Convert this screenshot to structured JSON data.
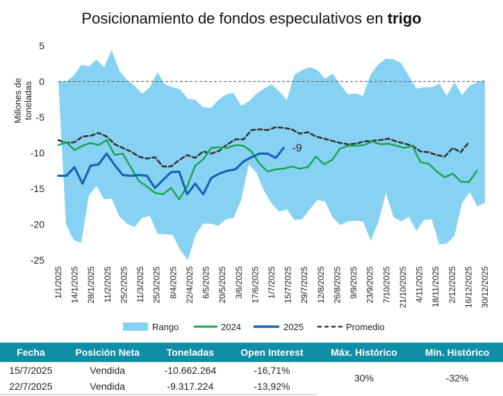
{
  "title_main": "Posicionamiento de fondos especulativos en ",
  "title_bold": "trigo",
  "chart_data": {
    "type": "area",
    "ylabel": "Millones de toneladas",
    "ylim": [
      -25,
      5
    ],
    "yticks": [
      5,
      0,
      -5,
      -10,
      -15,
      -20,
      -25
    ],
    "x_tick_labels": [
      "1/1/2025",
      "14/1/2025",
      "28/1/2025",
      "11/2/2025",
      "25/2/2025",
      "11/3/2025",
      "25/3/2025",
      "8/4/2025",
      "22/4/2025",
      "6/5/2025",
      "20/5/2025",
      "3/6/2025",
      "17/6/2025",
      "1/7/2025",
      "15/7/2025",
      "29/7/2025",
      "12/8/2025",
      "26/8/2025",
      "9/9/2025",
      "23/9/2025",
      "7/10/2025",
      "21/10/2025",
      "4/11/2025",
      "18/11/2025",
      "2/12/2025",
      "16/12/2025",
      "30/12/2025"
    ],
    "legend": [
      "Rango",
      "2024",
      "2025",
      "Promedio"
    ],
    "end_annotation": "-9",
    "series": {
      "range_upper": [
        0,
        0,
        0.8,
        2.3,
        2.1,
        3.1,
        2.0,
        4.4,
        1.5,
        0.2,
        -0.6,
        -1.7,
        -0.8,
        1.3,
        -0.4,
        -0.8,
        -1.1,
        -2.4,
        -2.6,
        -3.6,
        -3.7,
        -2.6,
        -1.8,
        -1.6,
        -3.4,
        -2.8,
        -1.7,
        -1.0,
        -0.4,
        -1.4,
        -2.6,
        1.0,
        1.6,
        2.0,
        1.6,
        0.4,
        1.1,
        -0.4,
        -1.8,
        -1.7,
        -2.0,
        1.0,
        2.4,
        3.2,
        3.1,
        2.6,
        0.8,
        -1.0,
        -0.8,
        -0.8,
        -0.3,
        -2.0,
        -0.1,
        -1.9,
        -0.6,
        -0.1,
        0.2
      ],
      "range_lower": [
        0,
        -20.0,
        -22.2,
        -22.6,
        -16.0,
        -14.6,
        -16.5,
        -16.4,
        -18.9,
        -19.9,
        -20.4,
        -19.1,
        -18.8,
        -21.3,
        -21.4,
        -21.5,
        -23.6,
        -25.0,
        -21.5,
        -19.9,
        -19.9,
        -20.2,
        -19.3,
        -19.1,
        -16.6,
        -11.6,
        -12.8,
        -15.3,
        -17.1,
        -18.2,
        -17.9,
        -19.4,
        -19.3,
        -17.9,
        -16.6,
        -16.8,
        -19.0,
        -20.1,
        -19.6,
        -19.5,
        -19.6,
        -22.3,
        -19.7,
        -15.6,
        -19.0,
        -19.6,
        -18.9,
        -20.9,
        -19.4,
        -19.3,
        -22.8,
        -22.7,
        -21.6,
        -17.0,
        -15.5,
        -17.5,
        -17.0
      ],
      "y2024": [
        -8.9,
        -8.5,
        -9.6,
        -9.0,
        -8.6,
        -8.9,
        -8.2,
        -10.3,
        -10.1,
        -12.0,
        -13.9,
        -14.7,
        -15.6,
        -15.8,
        -14.9,
        -16.5,
        -14.7,
        -11.8,
        -10.9,
        -9.3,
        -9.2,
        -9.3,
        -8.9,
        -9.0,
        -9.8,
        -11.5,
        -12.6,
        -12.3,
        -12.2,
        -11.9,
        -12.2,
        -12.0,
        -10.5,
        -11.6,
        -11.0,
        -9.4,
        -9.0,
        -9.0,
        -8.9,
        -8.4,
        -8.8,
        -8.7,
        -9.0,
        -9.3,
        -9.0,
        -11.3,
        -11.5,
        -12.6,
        -13.4,
        -12.9,
        -14.0,
        -14.1,
        -12.5
      ],
      "y2025": [
        -13.2,
        -13.2,
        -12.0,
        -14.3,
        -11.8,
        -11.6,
        -10.1,
        -11.7,
        -13.1,
        -13.2,
        -13.1,
        -13.2,
        -14.9,
        -13.8,
        -12.7,
        -12.6,
        -15.8,
        -14.3,
        -15.8,
        -13.5,
        -12.9,
        -12.5,
        -12.3,
        -11.2,
        -10.6,
        -10.1,
        -10.1,
        -10.7,
        -9.3
      ],
      "avg": [
        -8.2,
        -8.6,
        -8.5,
        -7.7,
        -7.6,
        -7.2,
        -7.7,
        -8.8,
        -9.3,
        -9.8,
        -10.5,
        -10.8,
        -10.6,
        -11.9,
        -11.9,
        -11.0,
        -10.3,
        -10.7,
        -9.8,
        -10.1,
        -9.7,
        -8.8,
        -8.1,
        -8.1,
        -6.8,
        -6.7,
        -6.8,
        -6.4,
        -6.5,
        -6.7,
        -7.3,
        -7.1,
        -7.7,
        -8.0,
        -8.3,
        -8.6,
        -8.8,
        -8.7,
        -8.4,
        -8.3,
        -8.2,
        -8.0,
        -8.4,
        -8.7,
        -9.0,
        -9.8,
        -9.9,
        -10.3,
        -10.5,
        -9.3,
        -9.9,
        -8.5
      ]
    }
  },
  "table": {
    "headers": [
      "Fecha",
      "Posición Neta",
      "Toneladas",
      "Open Interest",
      "Máx. Histórico",
      "Mín. Histórico"
    ],
    "rows": [
      [
        "15/7/2025",
        "Vendida",
        "-10.662.264",
        "-16,71%"
      ],
      [
        "22/7/2025",
        "Vendida",
        "-9.317.224",
        "-13,92%"
      ]
    ],
    "max_hist": "30%",
    "min_hist": "-32%"
  },
  "colors": {
    "range": "#87d2f3",
    "y2024": "#16a34a",
    "y2025": "#1565b7",
    "avg": "#333333",
    "header_bg": "#0f8ea5"
  }
}
